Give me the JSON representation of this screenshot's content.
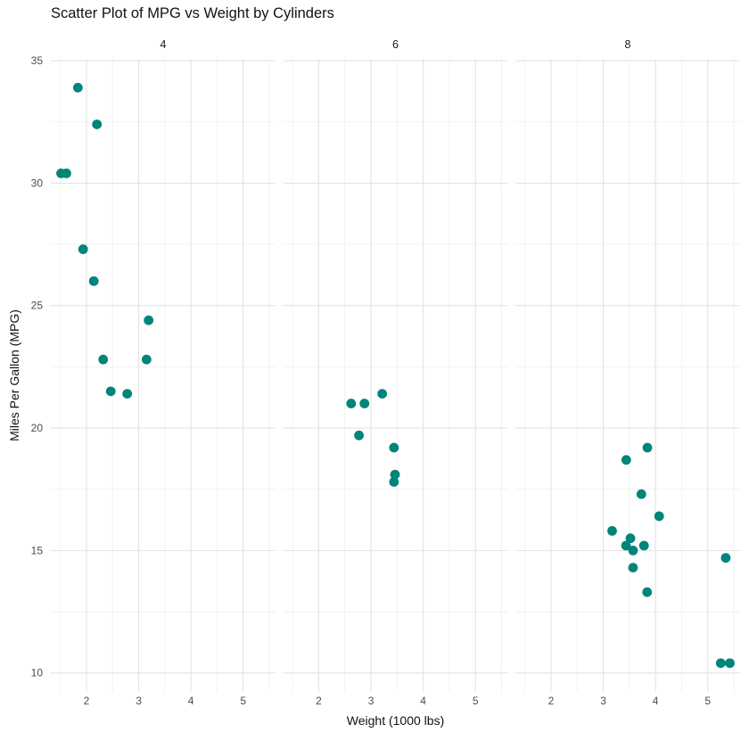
{
  "title": "Scatter Plot of MPG vs Weight by Cylinders",
  "chart_data": {
    "type": "scatter",
    "title": "Scatter Plot of MPG vs Weight by Cylinders",
    "xlabel": "Weight (1000 lbs)",
    "ylabel": "Miles Per Gallon (MPG)",
    "facet_variable": "Cylinders",
    "legend": "none",
    "grid": true,
    "x_ticks": [
      2,
      3,
      4,
      5
    ],
    "y_ticks": [
      10,
      15,
      20,
      25,
      30,
      35
    ],
    "x_minor": [
      1.5,
      2.5,
      3.5,
      4.5,
      5.5
    ],
    "y_minor": [
      12.5,
      17.5,
      22.5,
      27.5,
      32.5
    ],
    "xlim": [
      1.317,
      5.62
    ],
    "ylim": [
      9.225,
      35.075
    ],
    "facets": [
      {
        "label": "4",
        "points": [
          [
            2.32,
            22.8
          ],
          [
            3.19,
            24.4
          ],
          [
            3.15,
            22.8
          ],
          [
            2.2,
            32.4
          ],
          [
            1.615,
            30.4
          ],
          [
            1.835,
            33.9
          ],
          [
            2.465,
            21.5
          ],
          [
            1.935,
            27.3
          ],
          [
            2.14,
            26.0
          ],
          [
            1.513,
            30.4
          ],
          [
            2.78,
            21.4
          ]
        ]
      },
      {
        "label": "6",
        "points": [
          [
            2.62,
            21.0
          ],
          [
            2.875,
            21.0
          ],
          [
            3.215,
            21.4
          ],
          [
            3.46,
            18.1
          ],
          [
            3.44,
            19.2
          ],
          [
            3.44,
            17.8
          ],
          [
            2.77,
            19.7
          ]
        ]
      },
      {
        "label": "8",
        "points": [
          [
            3.44,
            18.7
          ],
          [
            3.57,
            14.3
          ],
          [
            4.07,
            16.4
          ],
          [
            3.73,
            17.3
          ],
          [
            3.78,
            15.2
          ],
          [
            5.25,
            10.4
          ],
          [
            5.424,
            10.4
          ],
          [
            5.345,
            14.7
          ],
          [
            3.52,
            15.5
          ],
          [
            3.435,
            15.2
          ],
          [
            3.84,
            13.3
          ],
          [
            3.845,
            19.2
          ],
          [
            3.17,
            15.8
          ],
          [
            3.57,
            15.0
          ]
        ]
      }
    ]
  },
  "colors": {
    "point": "#00857a",
    "grid_major": "#e3e3e3",
    "grid_minor": "#efefef",
    "tick_text": "#4d4d4d",
    "strip_text": "#1a1a1a",
    "background": "#ffffff"
  },
  "style": {
    "point_radius": 5.4
  }
}
